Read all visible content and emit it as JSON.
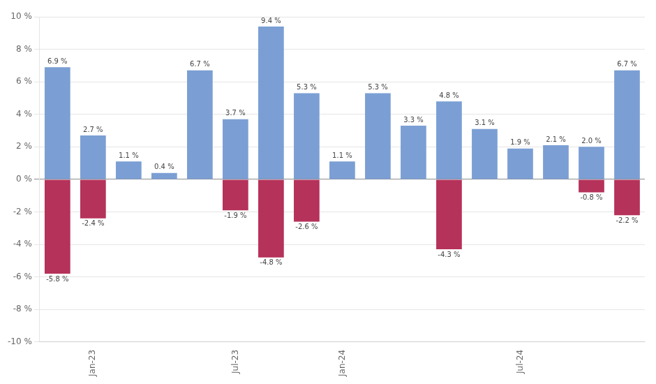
{
  "chart_data": {
    "type": "bar",
    "stacked": true,
    "categories": [
      null,
      "Jan-23",
      null,
      null,
      null,
      "Jul-23",
      null,
      null,
      "Jan-24",
      null,
      null,
      null,
      null,
      "Jul-24",
      null,
      null,
      null
    ],
    "series": [
      {
        "color": "#7B9FD4",
        "values": [
          6.9,
          2.7,
          1.1,
          0.4,
          6.7,
          3.7,
          9.4,
          5.3,
          1.1,
          5.3,
          3.3,
          4.8,
          3.1,
          1.9,
          2.1,
          2.0,
          6.7
        ],
        "value_labels": [
          "6.9 %",
          "2.7 %",
          "1.1 %",
          "0.4 %",
          "6.7 %",
          "3.7 %",
          "9.4 %",
          "5.3 %",
          "1.1 %",
          "5.3 %",
          "3.3 %",
          "4.8 %",
          "3.1 %",
          "1.9 %",
          "2.1 %",
          "2.0 %",
          "6.7 %"
        ]
      },
      {
        "color": "#B5325A",
        "values": [
          -5.8,
          -2.4,
          0.0,
          0.0,
          0.0,
          -1.9,
          -4.8,
          -2.6,
          0.0,
          0.0,
          0.0,
          -4.3,
          0.0,
          0.0,
          0.0,
          -0.8,
          -2.2
        ],
        "value_labels": [
          "-5.8 %",
          "-2.4 %",
          null,
          null,
          null,
          "-1.9 %",
          "-4.8 %",
          "-2.6 %",
          null,
          null,
          null,
          "-4.3 %",
          null,
          null,
          null,
          "-0.8 %",
          "-2.2 %"
        ]
      }
    ],
    "ylim": [
      -10,
      10
    ],
    "yticks": [
      {
        "value": -10,
        "label": "-10 %"
      },
      {
        "value": -8,
        "label": "-8 %"
      },
      {
        "value": -6,
        "label": "-6 %"
      },
      {
        "value": -4,
        "label": "-4 %"
      },
      {
        "value": -2,
        "label": "-2 %"
      },
      {
        "value": 0,
        "label": "0 %"
      },
      {
        "value": 2,
        "label": "2 %"
      },
      {
        "value": 4,
        "label": "4 %"
      },
      {
        "value": 6,
        "label": "6 %"
      },
      {
        "value": 8,
        "label": "8 %"
      },
      {
        "value": 10,
        "label": "10 %"
      }
    ],
    "grid": "y",
    "data_labels": true
  }
}
